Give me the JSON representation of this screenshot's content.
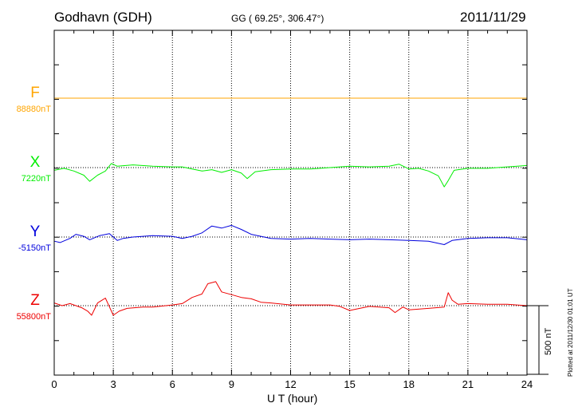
{
  "header": {
    "station": "Godhavn (GDH)",
    "coords": "GG ( 69.25°, 306.47°)",
    "date": "2011/11/29"
  },
  "plotted": "Plotted at 2011/12/30 01:01  UT",
  "chart_data": {
    "type": "line",
    "xlabel": "U T (hour)",
    "xlim": [
      0,
      24
    ],
    "xticks": [
      "0",
      "3",
      "6",
      "9",
      "12",
      "15",
      "18",
      "21",
      "24"
    ],
    "scale_bar": "500 nT",
    "series": [
      {
        "name": "F",
        "base": "88880nT",
        "color": "#ffa500",
        "x": [
          0,
          24
        ],
        "y": [
          0,
          0
        ]
      },
      {
        "name": "X",
        "base": "7220nT",
        "color": "#00ee00",
        "x": [
          0,
          0.5,
          1,
          1.5,
          1.8,
          2.2,
          2.6,
          2.9,
          3.2,
          4,
          5,
          6,
          6.5,
          7,
          7.5,
          8,
          8.5,
          9,
          9.5,
          9.8,
          10.2,
          11,
          12,
          13,
          14,
          15,
          16,
          17,
          17.5,
          18,
          18.5,
          19,
          19.5,
          19.8,
          20,
          20.3,
          21,
          22,
          23,
          24
        ],
        "y": [
          -20,
          -5,
          -25,
          -55,
          -100,
          -55,
          -25,
          30,
          10,
          20,
          10,
          5,
          5,
          -10,
          -25,
          -15,
          -35,
          -15,
          -40,
          -80,
          -30,
          -15,
          -10,
          -10,
          0,
          10,
          5,
          10,
          25,
          -10,
          -5,
          -25,
          -60,
          -140,
          -95,
          -20,
          -5,
          -5,
          5,
          15
        ]
      },
      {
        "name": "Y",
        "base": "-5150nT",
        "color": "#0000dd",
        "x": [
          0,
          0.3,
          0.8,
          1.1,
          1.5,
          1.8,
          2.3,
          2.8,
          3.2,
          3.5,
          4,
          5,
          6,
          6.5,
          7,
          7.5,
          8,
          8.5,
          9,
          9.5,
          10,
          11,
          12,
          13,
          14,
          15,
          16,
          17,
          18,
          19,
          19.8,
          20.2,
          21,
          22,
          23,
          24
        ],
        "y": [
          -30,
          -40,
          -10,
          20,
          5,
          -20,
          10,
          25,
          -25,
          -10,
          0,
          10,
          5,
          -10,
          5,
          30,
          80,
          65,
          85,
          55,
          20,
          -10,
          -15,
          -10,
          -15,
          -20,
          -15,
          -20,
          -25,
          -30,
          -55,
          -25,
          -10,
          -5,
          -5,
          -20
        ]
      },
      {
        "name": "Z",
        "base": "55800nT",
        "color": "#ee0000",
        "x": [
          0,
          0.4,
          0.8,
          1.4,
          1.7,
          1.9,
          2.2,
          2.6,
          3,
          3.3,
          3.7,
          4.5,
          5,
          6,
          6.5,
          7,
          7.5,
          7.8,
          8.2,
          8.5,
          9,
          9.5,
          10,
          10.5,
          11,
          12,
          13,
          14,
          14.5,
          15,
          16,
          17,
          17.3,
          17.7,
          18,
          19,
          19.8,
          20,
          20.2,
          20.5,
          21,
          22,
          23,
          24
        ],
        "y": [
          20,
          0,
          15,
          -15,
          -40,
          -70,
          20,
          55,
          -70,
          -40,
          -20,
          -10,
          -10,
          5,
          15,
          60,
          85,
          160,
          175,
          100,
          80,
          60,
          50,
          25,
          20,
          5,
          5,
          5,
          -5,
          -35,
          -5,
          -15,
          -50,
          -10,
          -30,
          -20,
          -10,
          95,
          40,
          10,
          15,
          10,
          10,
          0
        ]
      }
    ]
  }
}
